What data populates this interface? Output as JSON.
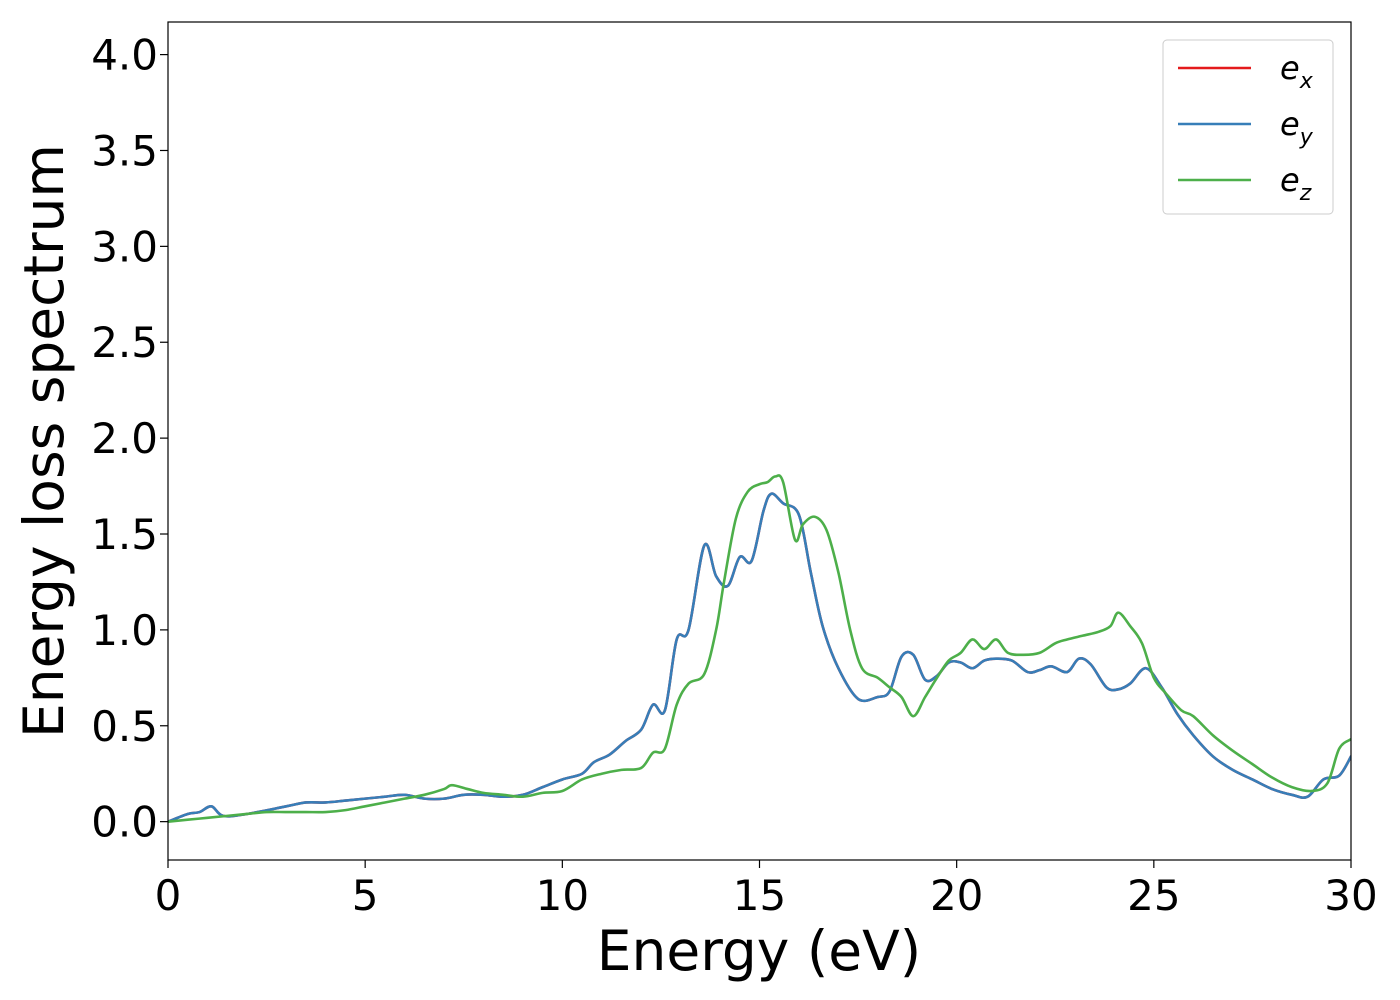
{
  "chart_data": {
    "type": "line",
    "xlabel": "Energy (eV)",
    "ylabel": "Energy loss spectrum",
    "xlim": [
      0,
      30
    ],
    "ylim": [
      -0.2,
      4.17
    ],
    "xticks": [
      0,
      5,
      10,
      15,
      20,
      25,
      30
    ],
    "xtick_labels": [
      "0",
      "5",
      "10",
      "15",
      "20",
      "25",
      "30"
    ],
    "yticks": [
      0.0,
      0.5,
      1.0,
      1.5,
      2.0,
      2.5,
      3.0,
      3.5,
      4.0
    ],
    "ytick_labels": [
      "0.0",
      "0.5",
      "1.0",
      "1.5",
      "2.0",
      "2.5",
      "3.0",
      "3.5",
      "4.0"
    ],
    "grid": false,
    "legend_position": "top-right",
    "series": [
      {
        "name": "e_x",
        "label_base": "e",
        "label_sub": "x",
        "color": "#e41a1c",
        "x": [
          0,
          0.5,
          0.8,
          1.1,
          1.4,
          2,
          3,
          3.5,
          4,
          4.5,
          5,
          5.5,
          6,
          6.5,
          7,
          7.5,
          8,
          8.5,
          9,
          9.5,
          10,
          10.5,
          10.8,
          11.2,
          11.6,
          12,
          12.3,
          12.6,
          12.9,
          13.2,
          13.6,
          13.9,
          14.2,
          14.5,
          14.8,
          15.1,
          15.3,
          15.6,
          16,
          16.3,
          16.6,
          17,
          17.5,
          18,
          18.3,
          18.6,
          18.9,
          19.2,
          19.5,
          19.8,
          20.1,
          20.4,
          20.7,
          21,
          21.4,
          21.8,
          22.1,
          22.4,
          22.8,
          23.1,
          23.4,
          23.8,
          24.1,
          24.4,
          24.8,
          25.2,
          25.6,
          26,
          26.5,
          27,
          27.5,
          28,
          28.5,
          28.9,
          29.3,
          29.7,
          30
        ],
        "y": [
          0.0,
          0.04,
          0.05,
          0.08,
          0.03,
          0.04,
          0.08,
          0.1,
          0.1,
          0.11,
          0.12,
          0.13,
          0.14,
          0.12,
          0.12,
          0.14,
          0.14,
          0.13,
          0.14,
          0.18,
          0.22,
          0.25,
          0.31,
          0.35,
          0.42,
          0.48,
          0.61,
          0.58,
          0.95,
          1.0,
          1.44,
          1.28,
          1.23,
          1.38,
          1.36,
          1.62,
          1.71,
          1.66,
          1.6,
          1.3,
          1.02,
          0.8,
          0.64,
          0.65,
          0.68,
          0.86,
          0.87,
          0.74,
          0.76,
          0.83,
          0.83,
          0.8,
          0.84,
          0.85,
          0.84,
          0.78,
          0.79,
          0.81,
          0.78,
          0.85,
          0.82,
          0.7,
          0.69,
          0.72,
          0.8,
          0.7,
          0.56,
          0.45,
          0.34,
          0.27,
          0.22,
          0.17,
          0.14,
          0.13,
          0.22,
          0.24,
          0.34
        ]
      },
      {
        "name": "e_y",
        "label_base": "e",
        "label_sub": "y",
        "color": "#377eb8",
        "x": [
          0,
          0.5,
          0.8,
          1.1,
          1.4,
          2,
          3,
          3.5,
          4,
          4.5,
          5,
          5.5,
          6,
          6.5,
          7,
          7.5,
          8,
          8.5,
          9,
          9.5,
          10,
          10.5,
          10.8,
          11.2,
          11.6,
          12,
          12.3,
          12.6,
          12.9,
          13.2,
          13.6,
          13.9,
          14.2,
          14.5,
          14.8,
          15.1,
          15.3,
          15.6,
          16,
          16.3,
          16.6,
          17,
          17.5,
          18,
          18.3,
          18.6,
          18.9,
          19.2,
          19.5,
          19.8,
          20.1,
          20.4,
          20.7,
          21,
          21.4,
          21.8,
          22.1,
          22.4,
          22.8,
          23.1,
          23.4,
          23.8,
          24.1,
          24.4,
          24.8,
          25.2,
          25.6,
          26,
          26.5,
          27,
          27.5,
          28,
          28.5,
          28.9,
          29.3,
          29.7,
          30
        ],
        "y": [
          0.0,
          0.04,
          0.05,
          0.08,
          0.03,
          0.04,
          0.08,
          0.1,
          0.1,
          0.11,
          0.12,
          0.13,
          0.14,
          0.12,
          0.12,
          0.14,
          0.14,
          0.13,
          0.14,
          0.18,
          0.22,
          0.25,
          0.31,
          0.35,
          0.42,
          0.48,
          0.61,
          0.58,
          0.95,
          1.0,
          1.44,
          1.28,
          1.23,
          1.38,
          1.36,
          1.62,
          1.71,
          1.66,
          1.6,
          1.3,
          1.02,
          0.8,
          0.64,
          0.65,
          0.68,
          0.86,
          0.87,
          0.74,
          0.76,
          0.83,
          0.83,
          0.8,
          0.84,
          0.85,
          0.84,
          0.78,
          0.79,
          0.81,
          0.78,
          0.85,
          0.82,
          0.7,
          0.69,
          0.72,
          0.8,
          0.7,
          0.56,
          0.45,
          0.34,
          0.27,
          0.22,
          0.17,
          0.14,
          0.13,
          0.22,
          0.24,
          0.34
        ]
      },
      {
        "name": "e_z",
        "label_base": "e",
        "label_sub": "z",
        "color": "#4daf4a",
        "x": [
          0,
          0.5,
          1,
          1.5,
          2,
          2.5,
          3,
          3.5,
          4,
          4.5,
          5,
          5.5,
          6,
          6.5,
          7,
          7.2,
          7.6,
          8,
          8.5,
          9,
          9.5,
          10,
          10.5,
          11,
          11.5,
          12,
          12.3,
          12.6,
          12.9,
          13.2,
          13.6,
          13.9,
          14.1,
          14.4,
          14.7,
          15,
          15.2,
          15.4,
          15.6,
          15.9,
          16.1,
          16.4,
          16.7,
          17,
          17.3,
          17.6,
          18,
          18.3,
          18.6,
          18.9,
          19.2,
          19.5,
          19.8,
          20.1,
          20.4,
          20.7,
          21,
          21.3,
          21.7,
          22.1,
          22.5,
          22.8,
          23.2,
          23.6,
          23.9,
          24.1,
          24.4,
          24.7,
          25,
          25.3,
          25.7,
          26,
          26.5,
          27,
          27.5,
          28,
          28.5,
          29,
          29.4,
          29.7,
          30
        ],
        "y": [
          0.0,
          0.01,
          0.02,
          0.03,
          0.04,
          0.05,
          0.05,
          0.05,
          0.05,
          0.06,
          0.08,
          0.1,
          0.12,
          0.14,
          0.17,
          0.19,
          0.17,
          0.15,
          0.14,
          0.13,
          0.15,
          0.16,
          0.22,
          0.25,
          0.27,
          0.28,
          0.36,
          0.38,
          0.61,
          0.72,
          0.77,
          1.0,
          1.25,
          1.58,
          1.72,
          1.76,
          1.77,
          1.8,
          1.77,
          1.47,
          1.55,
          1.59,
          1.52,
          1.3,
          1.0,
          0.8,
          0.75,
          0.7,
          0.65,
          0.55,
          0.65,
          0.75,
          0.84,
          0.88,
          0.95,
          0.9,
          0.95,
          0.88,
          0.87,
          0.88,
          0.93,
          0.95,
          0.97,
          0.99,
          1.02,
          1.09,
          1.02,
          0.93,
          0.75,
          0.67,
          0.58,
          0.55,
          0.45,
          0.37,
          0.3,
          0.23,
          0.18,
          0.16,
          0.2,
          0.38,
          0.43
        ]
      }
    ]
  }
}
